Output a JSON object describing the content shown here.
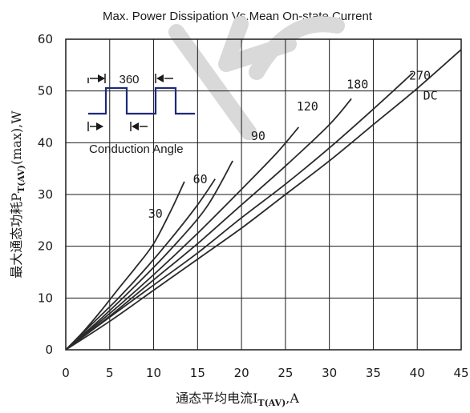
{
  "chart_data": {
    "type": "line",
    "title": "Max. Power Dissipation Vs.Mean On-state Current",
    "xlabel_main": "通态平均电流I",
    "xlabel_sub": "T(AV)",
    "xlabel_end": ",A",
    "ylabel_main": "最大通态功耗P",
    "ylabel_sub": "T(AV)",
    "ylabel_end": "(max),W",
    "xlim": [
      0,
      45
    ],
    "ylim": [
      0,
      60
    ],
    "x_ticks": [
      0,
      5,
      10,
      15,
      20,
      25,
      30,
      35,
      40,
      45
    ],
    "y_ticks": [
      0,
      10,
      20,
      30,
      40,
      50,
      60
    ],
    "grid": true,
    "series": [
      {
        "name": "30",
        "x": [
          0,
          2,
          4,
          6,
          8,
          10,
          12,
          13.5
        ],
        "y": [
          0,
          3.5,
          7.5,
          11.8,
          16,
          20.5,
          27,
          32.5
        ]
      },
      {
        "name": "60",
        "x": [
          0,
          3,
          6,
          9,
          12,
          15,
          17
        ],
        "y": [
          0,
          5,
          10,
          15.5,
          21.5,
          28,
          33
        ]
      },
      {
        "name": "90",
        "x": [
          0,
          4,
          8,
          12,
          16,
          19
        ],
        "y": [
          0,
          6,
          12.5,
          19.5,
          27.5,
          36.5
        ]
      },
      {
        "name": "120",
        "x": [
          0,
          5,
          10,
          15,
          20,
          24,
          26.5
        ],
        "y": [
          0,
          7,
          14.5,
          22.5,
          31,
          38,
          43
        ]
      },
      {
        "name": "180",
        "x": [
          0,
          5,
          10,
          15,
          20,
          25,
          30,
          32.5
        ],
        "y": [
          0,
          6.5,
          13.5,
          20.5,
          28,
          35.5,
          43.5,
          48.5
        ]
      },
      {
        "name": "270",
        "x": [
          0,
          5,
          10,
          15,
          20,
          25,
          30,
          35,
          39.5
        ],
        "y": [
          0,
          6.3,
          12.5,
          18.7,
          25.5,
          32,
          39,
          46.5,
          53.5
        ]
      },
      {
        "name": "DC",
        "x": [
          0,
          5,
          10,
          15,
          20,
          25,
          30,
          35,
          40,
          45
        ],
        "y": [
          0,
          5.5,
          11.5,
          17.5,
          23.5,
          30,
          36.5,
          43.5,
          50.5,
          58
        ]
      }
    ],
    "series_labels": [
      {
        "text": "30",
        "x": 10.2,
        "y": 25.5
      },
      {
        "text": "60",
        "x": 15.3,
        "y": 32.2
      },
      {
        "text": "90",
        "x": 21.9,
        "y": 40.5
      },
      {
        "text": "120",
        "x": 27.5,
        "y": 46.2
      },
      {
        "text": "180",
        "x": 33.2,
        "y": 50.5
      },
      {
        "text": "270",
        "x": 40.3,
        "y": 52.2
      },
      {
        "text": "DC",
        "x": 41.5,
        "y": 48.3
      }
    ],
    "inset": {
      "angle_label": "360",
      "conduction_label": "Conduction Angle"
    },
    "watermark": "KC"
  },
  "colors": {
    "line": "#2a2a2a",
    "inset_line": "#1f2a7a",
    "grid": "#1a1a1a",
    "axis": "#1a1a1a"
  }
}
